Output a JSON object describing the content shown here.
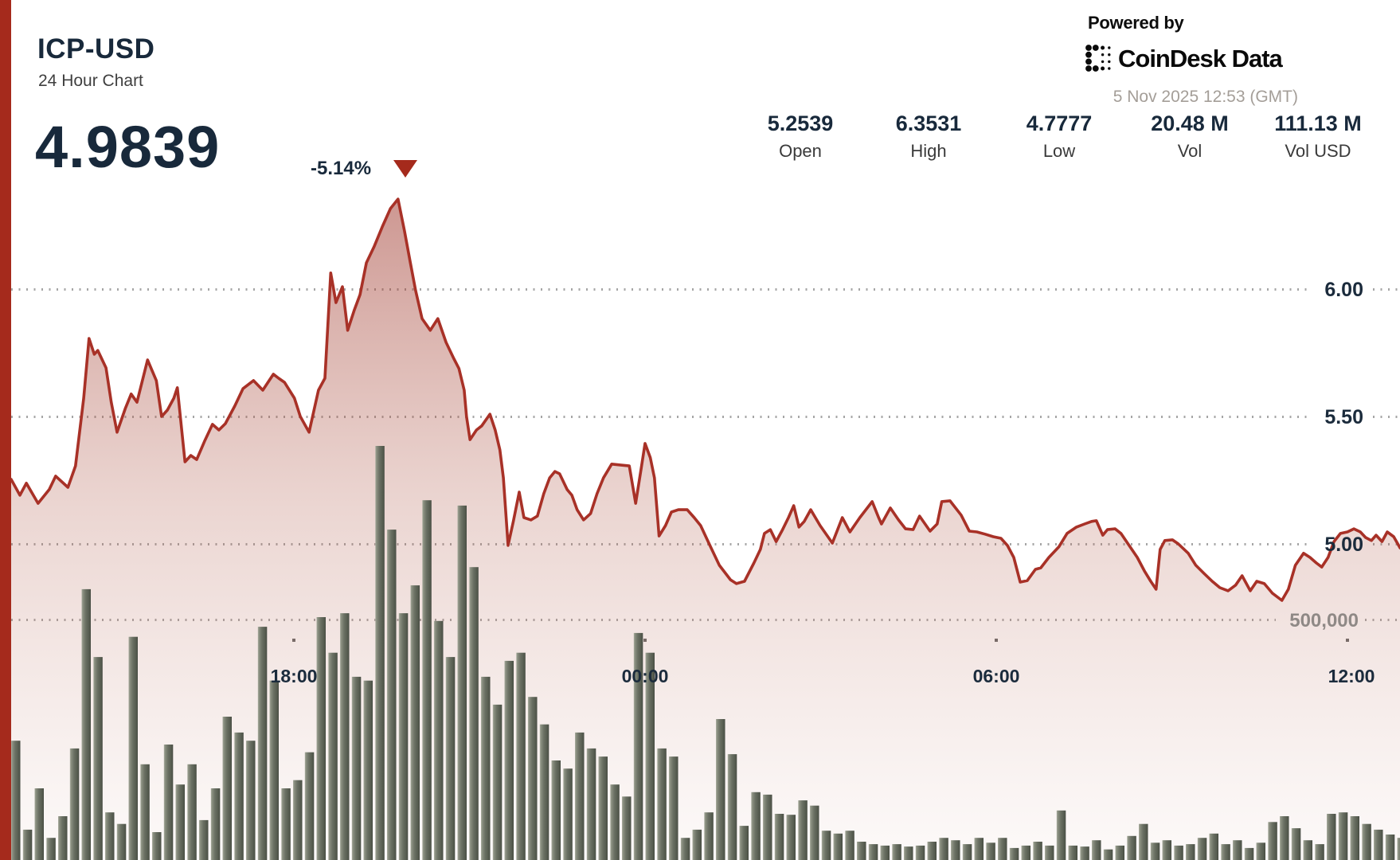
{
  "header": {
    "symbol": "ICP-USD",
    "subtitle": "24 Hour Chart",
    "price": "4.9839",
    "change": "-5.14%",
    "change_direction": "down",
    "stats": [
      {
        "value": "5.2539",
        "label": "Open"
      },
      {
        "value": "6.3531",
        "label": "High"
      },
      {
        "value": "4.7777",
        "label": "Low"
      },
      {
        "value": "20.48 M",
        "label": "Vol"
      },
      {
        "value": "111.13 M",
        "label": "Vol USD"
      }
    ],
    "powered_by": "Powered by",
    "provider": "CoinDesk Data",
    "timestamp": "5 Nov 2025 12:53 (GMT)"
  },
  "colors": {
    "accent_red": "#A52A1C",
    "line_red": "#A83127",
    "navy_text": "#18293B",
    "label_gray": "#3A3A3A",
    "timestamp_gray": "#A49E98",
    "volume_axis_gray": "#8F8986",
    "bar_olive": "#646A5E"
  },
  "chart_data": {
    "type": "area",
    "title": "ICP-USD 24 Hour Chart",
    "grid": "dotted horizontal",
    "legend": "none",
    "x_axis": {
      "unit": "hours (24h window ending 5 Nov 2025 12:53 GMT)",
      "tick_labels": [
        "18:00",
        "00:00",
        "06:00",
        "12:00"
      ],
      "tick_hours": [
        5,
        11,
        17,
        23
      ],
      "range_hours": [
        0,
        23.9
      ]
    },
    "y_axis_price": {
      "tick_labels": [
        "6.00",
        "5.50",
        "5.00"
      ],
      "tick_values": [
        6.0,
        5.5,
        5.0
      ],
      "side": "right"
    },
    "y_axis_volume": {
      "tick_labels": [
        "500,000"
      ],
      "tick_values": [
        500000
      ],
      "side": "right"
    },
    "summary": {
      "open": 5.2539,
      "high": 6.3531,
      "low": 4.7777,
      "close": 4.9839,
      "volume": "20.48 M",
      "volume_usd": "111.13 M"
    },
    "price_series": {
      "name": "ICP-USD price",
      "color": "#A83127",
      "points": [
        [
          0.17,
          5.253
        ],
        [
          0.32,
          5.191
        ],
        [
          0.43,
          5.238
        ],
        [
          0.63,
          5.159
        ],
        [
          0.82,
          5.213
        ],
        [
          0.93,
          5.266
        ],
        [
          1.14,
          5.222
        ],
        [
          1.27,
          5.306
        ],
        [
          1.41,
          5.572
        ],
        [
          1.5,
          5.806
        ],
        [
          1.59,
          5.744
        ],
        [
          1.65,
          5.759
        ],
        [
          1.79,
          5.691
        ],
        [
          1.88,
          5.556
        ],
        [
          1.98,
          5.438
        ],
        [
          2.12,
          5.531
        ],
        [
          2.22,
          5.588
        ],
        [
          2.32,
          5.556
        ],
        [
          2.5,
          5.722
        ],
        [
          2.65,
          5.641
        ],
        [
          2.74,
          5.5
        ],
        [
          2.84,
          5.525
        ],
        [
          2.95,
          5.572
        ],
        [
          3.01,
          5.613
        ],
        [
          3.14,
          5.322
        ],
        [
          3.24,
          5.347
        ],
        [
          3.34,
          5.331
        ],
        [
          3.48,
          5.406
        ],
        [
          3.61,
          5.469
        ],
        [
          3.72,
          5.447
        ],
        [
          3.83,
          5.472
        ],
        [
          3.99,
          5.541
        ],
        [
          4.13,
          5.609
        ],
        [
          4.31,
          5.641
        ],
        [
          4.47,
          5.603
        ],
        [
          4.65,
          5.666
        ],
        [
          4.74,
          5.65
        ],
        [
          4.84,
          5.634
        ],
        [
          5.01,
          5.572
        ],
        [
          5.11,
          5.5
        ],
        [
          5.26,
          5.438
        ],
        [
          5.42,
          5.603
        ],
        [
          5.53,
          5.65
        ],
        [
          5.63,
          6.063
        ],
        [
          5.72,
          5.947
        ],
        [
          5.83,
          6.009
        ],
        [
          5.92,
          5.838
        ],
        [
          6.03,
          5.916
        ],
        [
          6.13,
          5.978
        ],
        [
          6.24,
          6.103
        ],
        [
          6.37,
          6.166
        ],
        [
          6.51,
          6.244
        ],
        [
          6.65,
          6.316
        ],
        [
          6.78,
          6.353
        ],
        [
          6.89,
          6.228
        ],
        [
          6.99,
          6.103
        ],
        [
          7.08,
          5.994
        ],
        [
          7.19,
          5.884
        ],
        [
          7.33,
          5.838
        ],
        [
          7.46,
          5.884
        ],
        [
          7.6,
          5.791
        ],
        [
          7.73,
          5.728
        ],
        [
          7.82,
          5.688
        ],
        [
          7.91,
          5.603
        ],
        [
          7.95,
          5.5
        ],
        [
          8.01,
          5.409
        ],
        [
          8.12,
          5.447
        ],
        [
          8.21,
          5.463
        ],
        [
          8.35,
          5.509
        ],
        [
          8.44,
          5.447
        ],
        [
          8.52,
          5.369
        ],
        [
          8.58,
          5.259
        ],
        [
          8.66,
          4.994
        ],
        [
          8.75,
          5.088
        ],
        [
          8.85,
          5.203
        ],
        [
          8.93,
          5.103
        ],
        [
          9.05,
          5.094
        ],
        [
          9.16,
          5.109
        ],
        [
          9.27,
          5.197
        ],
        [
          9.37,
          5.259
        ],
        [
          9.46,
          5.284
        ],
        [
          9.54,
          5.275
        ],
        [
          9.67,
          5.213
        ],
        [
          9.75,
          5.191
        ],
        [
          9.84,
          5.134
        ],
        [
          9.95,
          5.094
        ],
        [
          10.07,
          5.119
        ],
        [
          10.18,
          5.197
        ],
        [
          10.29,
          5.259
        ],
        [
          10.43,
          5.313
        ],
        [
          10.59,
          5.309
        ],
        [
          10.73,
          5.306
        ],
        [
          10.84,
          5.159
        ],
        [
          10.93,
          5.291
        ],
        [
          11.0,
          5.394
        ],
        [
          11.09,
          5.338
        ],
        [
          11.16,
          5.259
        ],
        [
          11.24,
          5.031
        ],
        [
          11.35,
          5.072
        ],
        [
          11.45,
          5.125
        ],
        [
          11.57,
          5.134
        ],
        [
          11.72,
          5.134
        ],
        [
          11.84,
          5.103
        ],
        [
          11.95,
          5.072
        ],
        [
          12.12,
          4.988
        ],
        [
          12.27,
          4.916
        ],
        [
          12.46,
          4.859
        ],
        [
          12.56,
          4.844
        ],
        [
          12.7,
          4.853
        ],
        [
          12.86,
          4.925
        ],
        [
          12.97,
          4.978
        ],
        [
          13.04,
          5.041
        ],
        [
          13.14,
          5.056
        ],
        [
          13.24,
          5.009
        ],
        [
          13.35,
          5.056
        ],
        [
          13.45,
          5.103
        ],
        [
          13.54,
          5.15
        ],
        [
          13.63,
          5.066
        ],
        [
          13.72,
          5.088
        ],
        [
          13.83,
          5.134
        ],
        [
          13.99,
          5.072
        ],
        [
          14.2,
          5.003
        ],
        [
          14.37,
          5.103
        ],
        [
          14.5,
          5.047
        ],
        [
          14.67,
          5.103
        ],
        [
          14.88,
          5.166
        ],
        [
          14.99,
          5.103
        ],
        [
          15.04,
          5.078
        ],
        [
          15.19,
          5.141
        ],
        [
          15.33,
          5.094
        ],
        [
          15.45,
          5.059
        ],
        [
          15.58,
          5.056
        ],
        [
          15.69,
          5.109
        ],
        [
          15.87,
          5.05
        ],
        [
          15.99,
          5.078
        ],
        [
          16.07,
          5.166
        ],
        [
          16.21,
          5.169
        ],
        [
          16.4,
          5.113
        ],
        [
          16.54,
          5.05
        ],
        [
          16.67,
          5.047
        ],
        [
          16.81,
          5.038
        ],
        [
          16.95,
          5.028
        ],
        [
          17.08,
          5.022
        ],
        [
          17.19,
          4.994
        ],
        [
          17.3,
          4.947
        ],
        [
          17.41,
          4.85
        ],
        [
          17.53,
          4.856
        ],
        [
          17.67,
          4.9
        ],
        [
          17.76,
          4.906
        ],
        [
          17.9,
          4.947
        ],
        [
          18.07,
          4.988
        ],
        [
          18.21,
          5.041
        ],
        [
          18.37,
          5.066
        ],
        [
          18.51,
          5.078
        ],
        [
          18.63,
          5.088
        ],
        [
          18.71,
          5.091
        ],
        [
          18.82,
          5.034
        ],
        [
          18.9,
          5.056
        ],
        [
          19.03,
          5.059
        ],
        [
          19.13,
          5.041
        ],
        [
          19.27,
          4.994
        ],
        [
          19.41,
          4.947
        ],
        [
          19.53,
          4.894
        ],
        [
          19.64,
          4.853
        ],
        [
          19.73,
          4.822
        ],
        [
          19.8,
          4.978
        ],
        [
          19.88,
          5.013
        ],
        [
          20.01,
          5.016
        ],
        [
          20.11,
          5.0
        ],
        [
          20.28,
          4.963
        ],
        [
          20.41,
          4.916
        ],
        [
          20.55,
          4.884
        ],
        [
          20.69,
          4.853
        ],
        [
          20.82,
          4.828
        ],
        [
          20.96,
          4.816
        ],
        [
          21.09,
          4.838
        ],
        [
          21.2,
          4.875
        ],
        [
          21.34,
          4.816
        ],
        [
          21.45,
          4.853
        ],
        [
          21.58,
          4.844
        ],
        [
          21.72,
          4.806
        ],
        [
          21.88,
          4.778
        ],
        [
          21.99,
          4.822
        ],
        [
          22.11,
          4.916
        ],
        [
          22.25,
          4.963
        ],
        [
          22.36,
          4.947
        ],
        [
          22.47,
          4.925
        ],
        [
          22.56,
          4.909
        ],
        [
          22.67,
          4.947
        ],
        [
          22.77,
          5.009
        ],
        [
          22.88,
          5.041
        ],
        [
          23.0,
          5.047
        ],
        [
          23.11,
          5.059
        ],
        [
          23.22,
          5.047
        ],
        [
          23.31,
          5.025
        ],
        [
          23.41,
          5.013
        ],
        [
          23.49,
          5.034
        ],
        [
          23.59,
          5.009
        ],
        [
          23.68,
          5.047
        ],
        [
          23.79,
          5.028
        ],
        [
          23.9,
          4.984
        ]
      ]
    },
    "volume_series": {
      "name": "Volume",
      "color": "#646A5E",
      "interval_minutes": 12,
      "bar_values": [
        248000,
        63000,
        149000,
        46000,
        91000,
        232000,
        563000,
        422000,
        99000,
        75000,
        464000,
        199000,
        58000,
        240000,
        157000,
        199000,
        83000,
        149000,
        298000,
        265000,
        248000,
        485000,
        373000,
        149000,
        166000,
        224000,
        505000,
        431000,
        513000,
        381000,
        373000,
        861000,
        687000,
        513000,
        571000,
        748000,
        497000,
        422000,
        737000,
        609000,
        381000,
        323000,
        414000,
        431000,
        339000,
        282000,
        207000,
        190000,
        265000,
        232000,
        215000,
        157000,
        132000,
        472000,
        431000,
        232000,
        215000,
        46000,
        63000,
        99000,
        293000,
        220000,
        71000,
        141000,
        136000,
        96000,
        94000,
        124000,
        113000,
        61000,
        55000,
        61000,
        38000,
        33000,
        30000,
        33000,
        28000,
        30000,
        38000,
        46000,
        41000,
        33000,
        46000,
        36000,
        46000,
        25000,
        30000,
        38000,
        30000,
        103000,
        30000,
        28000,
        41000,
        22000,
        30000,
        50000,
        75000,
        36000,
        41000,
        30000,
        33000,
        46000,
        55000,
        33000,
        41000,
        25000,
        36000,
        79000,
        91000,
        66000,
        41000,
        33000,
        96000,
        99000,
        91000,
        75000,
        63000,
        53000,
        46000
      ]
    }
  }
}
